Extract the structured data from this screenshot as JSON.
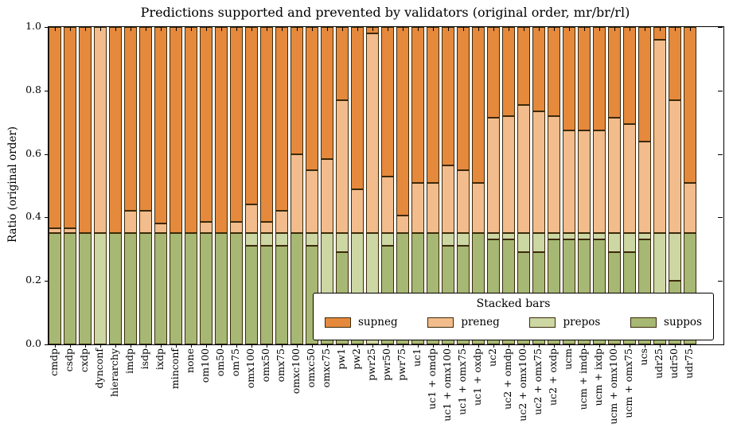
{
  "title": "Predictions supported and prevented by validators (original order, mr/br/rl)",
  "ylabel": "Ratio (original order)",
  "yticks": [
    "0.0",
    "0.2",
    "0.4",
    "0.6",
    "0.8",
    "1.0"
  ],
  "legend": {
    "title": "Stacked bars",
    "entries": [
      {
        "label": "supneg",
        "color": "#e5893c"
      },
      {
        "label": "preneg",
        "color": "#f2bc8c"
      },
      {
        "label": "prepos",
        "color": "#ccd7a3"
      },
      {
        "label": "suppos",
        "color": "#a6b873"
      }
    ]
  },
  "chart_data": {
    "type": "bar",
    "stacked": true,
    "title": "Predictions supported and prevented by validators (original order, mr/br/rl)",
    "xlabel": "",
    "ylabel": "Ratio (original order)",
    "ylim": [
      0.0,
      1.0
    ],
    "grid": false,
    "legend_position": "lower right",
    "legend_title": "Stacked bars",
    "edge_color": "#3c2a0a",
    "categories": [
      "cmdp",
      "csdp",
      "cxdp",
      "dynconf",
      "hierarchy",
      "imdp",
      "isdp",
      "ixdp",
      "minconf",
      "none",
      "om100",
      "om50",
      "om75",
      "omx100",
      "omx50",
      "omx75",
      "omxc100",
      "omxc50",
      "omxc75",
      "pw1",
      "pw2",
      "pwr25",
      "pwr50",
      "pwr75",
      "uc1",
      "uc1 + omdp",
      "uc1 + omx100",
      "uc1 + omx75",
      "uc1 + oxdp",
      "uc2",
      "uc2 + omdp",
      "uc2 + omx100",
      "uc2 + omx75",
      "uc2 + oxdp",
      "ucm",
      "ucm + imdp",
      "ucm + ixdp",
      "ucm + omx100",
      "ucm + omx75",
      "ucs",
      "udr25",
      "udr50",
      "udr75"
    ],
    "series": [
      {
        "name": "suppos",
        "color": "#a6b873",
        "values": [
          0.35,
          0.35,
          0.35,
          0.0,
          0.35,
          0.35,
          0.35,
          0.35,
          0.35,
          0.35,
          0.35,
          0.35,
          0.35,
          0.31,
          0.31,
          0.31,
          0.35,
          0.31,
          0.06,
          0.29,
          0.06,
          0.0,
          0.31,
          0.35,
          0.35,
          0.35,
          0.31,
          0.31,
          0.35,
          0.33,
          0.33,
          0.29,
          0.29,
          0.33,
          0.33,
          0.33,
          0.33,
          0.29,
          0.29,
          0.33,
          0.1,
          0.2,
          0.35
        ]
      },
      {
        "name": "prepos",
        "color": "#ccd7a3",
        "values": [
          0.0,
          0.0,
          0.0,
          0.35,
          0.0,
          0.0,
          0.0,
          0.0,
          0.0,
          0.0,
          0.0,
          0.0,
          0.0,
          0.04,
          0.04,
          0.04,
          0.0,
          0.04,
          0.29,
          0.06,
          0.29,
          0.35,
          0.04,
          0.0,
          0.0,
          0.0,
          0.04,
          0.04,
          0.0,
          0.02,
          0.02,
          0.06,
          0.06,
          0.02,
          0.02,
          0.02,
          0.02,
          0.06,
          0.06,
          0.02,
          0.25,
          0.15,
          0.0
        ]
      },
      {
        "name": "preneg",
        "color": "#f2bc8c",
        "values": [
          0.015,
          0.015,
          0.0,
          0.65,
          0.0,
          0.07,
          0.07,
          0.03,
          0.0,
          0.0,
          0.035,
          0.0,
          0.035,
          0.09,
          0.035,
          0.07,
          0.25,
          0.2,
          0.235,
          0.42,
          0.14,
          0.63,
          0.18,
          0.055,
          0.16,
          0.16,
          0.215,
          0.2,
          0.16,
          0.365,
          0.37,
          0.405,
          0.385,
          0.37,
          0.325,
          0.325,
          0.325,
          0.365,
          0.345,
          0.29,
          0.61,
          0.42,
          0.16
        ]
      },
      {
        "name": "supneg",
        "color": "#e5893c",
        "values": [
          0.635,
          0.635,
          0.65,
          0.0,
          0.65,
          0.58,
          0.58,
          0.62,
          0.65,
          0.65,
          0.615,
          0.65,
          0.615,
          0.56,
          0.615,
          0.58,
          0.4,
          0.45,
          0.415,
          0.23,
          0.51,
          0.02,
          0.47,
          0.595,
          0.49,
          0.49,
          0.435,
          0.45,
          0.49,
          0.285,
          0.28,
          0.245,
          0.265,
          0.28,
          0.325,
          0.325,
          0.325,
          0.285,
          0.305,
          0.36,
          0.04,
          0.23,
          0.49
        ]
      }
    ]
  }
}
